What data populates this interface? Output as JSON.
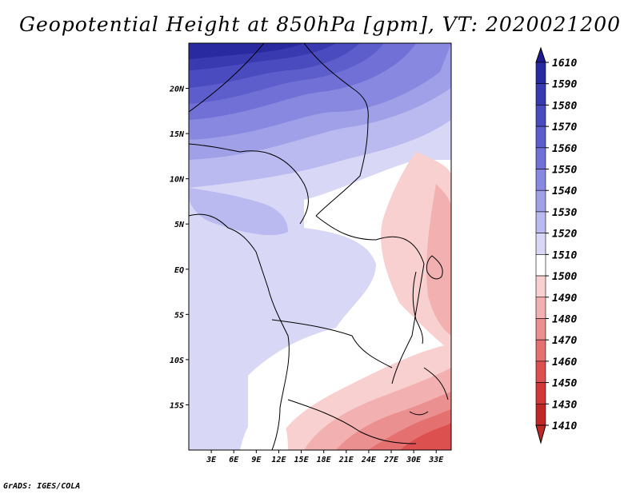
{
  "title": "Geopotential Height at 850hPa [gpm], VT: 2020021200",
  "footer": "GrADS: IGES/COLA",
  "map": {
    "lon_range": [
      0,
      35
    ],
    "lat_range": [
      -20,
      25
    ],
    "lat_labels": [
      {
        "lat": 20,
        "text": "20N"
      },
      {
        "lat": 15,
        "text": "15N"
      },
      {
        "lat": 10,
        "text": "10N"
      },
      {
        "lat": 5,
        "text": "5N"
      },
      {
        "lat": 0,
        "text": "EQ"
      },
      {
        "lat": -5,
        "text": "5S"
      },
      {
        "lat": -10,
        "text": "10S"
      },
      {
        "lat": -15,
        "text": "15S"
      }
    ],
    "lon_labels": [
      {
        "lon": 3,
        "text": "3E"
      },
      {
        "lon": 6,
        "text": "6E"
      },
      {
        "lon": 9,
        "text": "9E"
      },
      {
        "lon": 12,
        "text": "12E"
      },
      {
        "lon": 15,
        "text": "15E"
      },
      {
        "lon": 18,
        "text": "18E"
      },
      {
        "lon": 21,
        "text": "21E"
      },
      {
        "lon": 24,
        "text": "24E"
      },
      {
        "lon": 27,
        "text": "27E"
      },
      {
        "lon": 30,
        "text": "30E"
      },
      {
        "lon": 33,
        "text": "33E"
      }
    ]
  },
  "colorbar": {
    "levels": [
      "1610",
      "1590",
      "1580",
      "1570",
      "1560",
      "1550",
      "1540",
      "1530",
      "1520",
      "1510",
      "1500",
      "1490",
      "1480",
      "1470",
      "1460",
      "1450",
      "1430",
      "1410"
    ],
    "colors": [
      "#1f1a8f",
      "#2a2aa0",
      "#3a3ab0",
      "#4b4bc0",
      "#5d5dcc",
      "#7070d6",
      "#8888e0",
      "#a0a0e8",
      "#babaf0",
      "#d8d8f6",
      "#ffffff",
      "#f8d0d0",
      "#f2b0b0",
      "#eb9090",
      "#e47070",
      "#dc5050",
      "#d23838",
      "#c02828"
    ]
  }
}
